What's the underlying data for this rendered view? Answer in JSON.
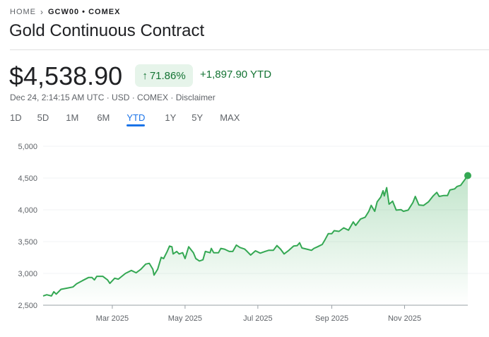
{
  "breadcrumb": {
    "home": "HOME",
    "symbol": "GCW00 • COMEX"
  },
  "title": "Gold Continuous Contract",
  "quote": {
    "price": "$4,538.90",
    "percent": "71.86%",
    "change": "+1,897.90 YTD",
    "subtitle": "Dec 24, 2:14:15 AM UTC · USD · COMEX · Disclaimer"
  },
  "tabs": [
    {
      "label": "1D"
    },
    {
      "label": "5D"
    },
    {
      "label": "1M"
    },
    {
      "label": "6M"
    },
    {
      "label": "YTD",
      "active": true
    },
    {
      "label": "1Y"
    },
    {
      "label": "5Y"
    },
    {
      "label": "MAX"
    }
  ],
  "colors": {
    "up": "#137333",
    "line": "#34a853",
    "accent": "#1a73e8",
    "badge_bg": "#e6f4ea"
  },
  "chart_data": {
    "type": "area",
    "title": "",
    "xlabel": "",
    "ylabel": "",
    "ylim": [
      2500,
      5000
    ],
    "xlim": [
      "2025-01-02",
      "2025-12-24"
    ],
    "yticks": [
      "5,000",
      "4,500",
      "4,000",
      "3,500",
      "3,000",
      "2,500"
    ],
    "ytick_values": [
      5000,
      4500,
      4000,
      3500,
      3000,
      2500
    ],
    "xticks": [
      {
        "label": "Mar 2025",
        "date": "2025-03-01"
      },
      {
        "label": "May 2025",
        "date": "2025-05-01"
      },
      {
        "label": "Jul 2025",
        "date": "2025-07-01"
      },
      {
        "label": "Sep 2025",
        "date": "2025-09-01"
      },
      {
        "label": "Nov 2025",
        "date": "2025-11-01"
      }
    ],
    "grid": true,
    "series": [
      {
        "points": [
          [
            "2025-01-02",
            2645
          ],
          [
            "2025-01-05",
            2664
          ],
          [
            "2025-01-09",
            2645
          ],
          [
            "2025-01-11",
            2712
          ],
          [
            "2025-01-13",
            2675
          ],
          [
            "2025-01-17",
            2750
          ],
          [
            "2025-01-22",
            2768
          ],
          [
            "2025-01-27",
            2787
          ],
          [
            "2025-01-30",
            2835
          ],
          [
            "2025-02-04",
            2887
          ],
          [
            "2025-02-09",
            2935
          ],
          [
            "2025-02-12",
            2935
          ],
          [
            "2025-02-14",
            2898
          ],
          [
            "2025-02-16",
            2954
          ],
          [
            "2025-02-21",
            2954
          ],
          [
            "2025-02-25",
            2898
          ],
          [
            "2025-02-27",
            2843
          ],
          [
            "2025-03-03",
            2924
          ],
          [
            "2025-03-06",
            2910
          ],
          [
            "2025-03-12",
            3000
          ],
          [
            "2025-03-17",
            3047
          ],
          [
            "2025-03-21",
            3010
          ],
          [
            "2025-03-25",
            3066
          ],
          [
            "2025-03-29",
            3147
          ],
          [
            "2025-04-01",
            3159
          ],
          [
            "2025-04-04",
            3066
          ],
          [
            "2025-04-05",
            2973
          ],
          [
            "2025-04-08",
            3066
          ],
          [
            "2025-04-11",
            3252
          ],
          [
            "2025-04-13",
            3233
          ],
          [
            "2025-04-16",
            3345
          ],
          [
            "2025-04-18",
            3430
          ],
          [
            "2025-04-20",
            3419
          ],
          [
            "2025-04-21",
            3307
          ],
          [
            "2025-04-24",
            3345
          ],
          [
            "2025-04-26",
            3307
          ],
          [
            "2025-04-29",
            3326
          ],
          [
            "2025-05-01",
            3233
          ],
          [
            "2025-05-04",
            3419
          ],
          [
            "2025-05-08",
            3326
          ],
          [
            "2025-05-10",
            3233
          ],
          [
            "2025-05-13",
            3196
          ],
          [
            "2025-05-16",
            3214
          ],
          [
            "2025-05-18",
            3345
          ],
          [
            "2025-05-22",
            3326
          ],
          [
            "2025-05-23",
            3393
          ],
          [
            "2025-05-25",
            3326
          ],
          [
            "2025-05-29",
            3326
          ],
          [
            "2025-05-31",
            3393
          ],
          [
            "2025-06-03",
            3382
          ],
          [
            "2025-06-07",
            3345
          ],
          [
            "2025-06-10",
            3345
          ],
          [
            "2025-06-13",
            3445
          ],
          [
            "2025-06-16",
            3408
          ],
          [
            "2025-06-20",
            3382
          ],
          [
            "2025-06-22",
            3345
          ],
          [
            "2025-06-25",
            3289
          ],
          [
            "2025-06-29",
            3356
          ],
          [
            "2025-07-03",
            3319
          ],
          [
            "2025-07-07",
            3345
          ],
          [
            "2025-07-10",
            3363
          ],
          [
            "2025-07-14",
            3363
          ],
          [
            "2025-07-17",
            3438
          ],
          [
            "2025-07-20",
            3382
          ],
          [
            "2025-07-23",
            3307
          ],
          [
            "2025-07-27",
            3363
          ],
          [
            "2025-07-31",
            3430
          ],
          [
            "2025-08-03",
            3438
          ],
          [
            "2025-08-05",
            3482
          ],
          [
            "2025-08-07",
            3400
          ],
          [
            "2025-08-11",
            3382
          ],
          [
            "2025-08-15",
            3363
          ],
          [
            "2025-08-17",
            3393
          ],
          [
            "2025-08-20",
            3419
          ],
          [
            "2025-08-24",
            3456
          ],
          [
            "2025-08-26",
            3519
          ],
          [
            "2025-08-29",
            3624
          ],
          [
            "2025-09-01",
            3624
          ],
          [
            "2025-09-03",
            3672
          ],
          [
            "2025-09-07",
            3661
          ],
          [
            "2025-09-11",
            3717
          ],
          [
            "2025-09-15",
            3680
          ],
          [
            "2025-09-19",
            3810
          ],
          [
            "2025-09-21",
            3754
          ],
          [
            "2025-09-25",
            3854
          ],
          [
            "2025-09-29",
            3884
          ],
          [
            "2025-10-02",
            3977
          ],
          [
            "2025-10-04",
            4070
          ],
          [
            "2025-10-07",
            3977
          ],
          [
            "2025-10-09",
            4126
          ],
          [
            "2025-10-12",
            4200
          ],
          [
            "2025-10-14",
            4300
          ],
          [
            "2025-10-15",
            4219
          ],
          [
            "2025-10-17",
            4349
          ],
          [
            "2025-10-19",
            4089
          ],
          [
            "2025-10-22",
            4137
          ],
          [
            "2025-10-25",
            3996
          ],
          [
            "2025-10-29",
            4003
          ],
          [
            "2025-10-31",
            3977
          ],
          [
            "2025-11-04",
            3996
          ],
          [
            "2025-11-08",
            4115
          ],
          [
            "2025-11-10",
            4211
          ],
          [
            "2025-11-13",
            4077
          ],
          [
            "2025-11-17",
            4070
          ],
          [
            "2025-11-21",
            4126
          ],
          [
            "2025-11-25",
            4219
          ],
          [
            "2025-11-28",
            4275
          ],
          [
            "2025-11-30",
            4211
          ],
          [
            "2025-12-04",
            4226
          ],
          [
            "2025-12-07",
            4226
          ],
          [
            "2025-12-09",
            4312
          ],
          [
            "2025-12-13",
            4330
          ],
          [
            "2025-12-15",
            4368
          ],
          [
            "2025-12-18",
            4386
          ],
          [
            "2025-12-24",
            4538.9
          ]
        ]
      }
    ]
  }
}
